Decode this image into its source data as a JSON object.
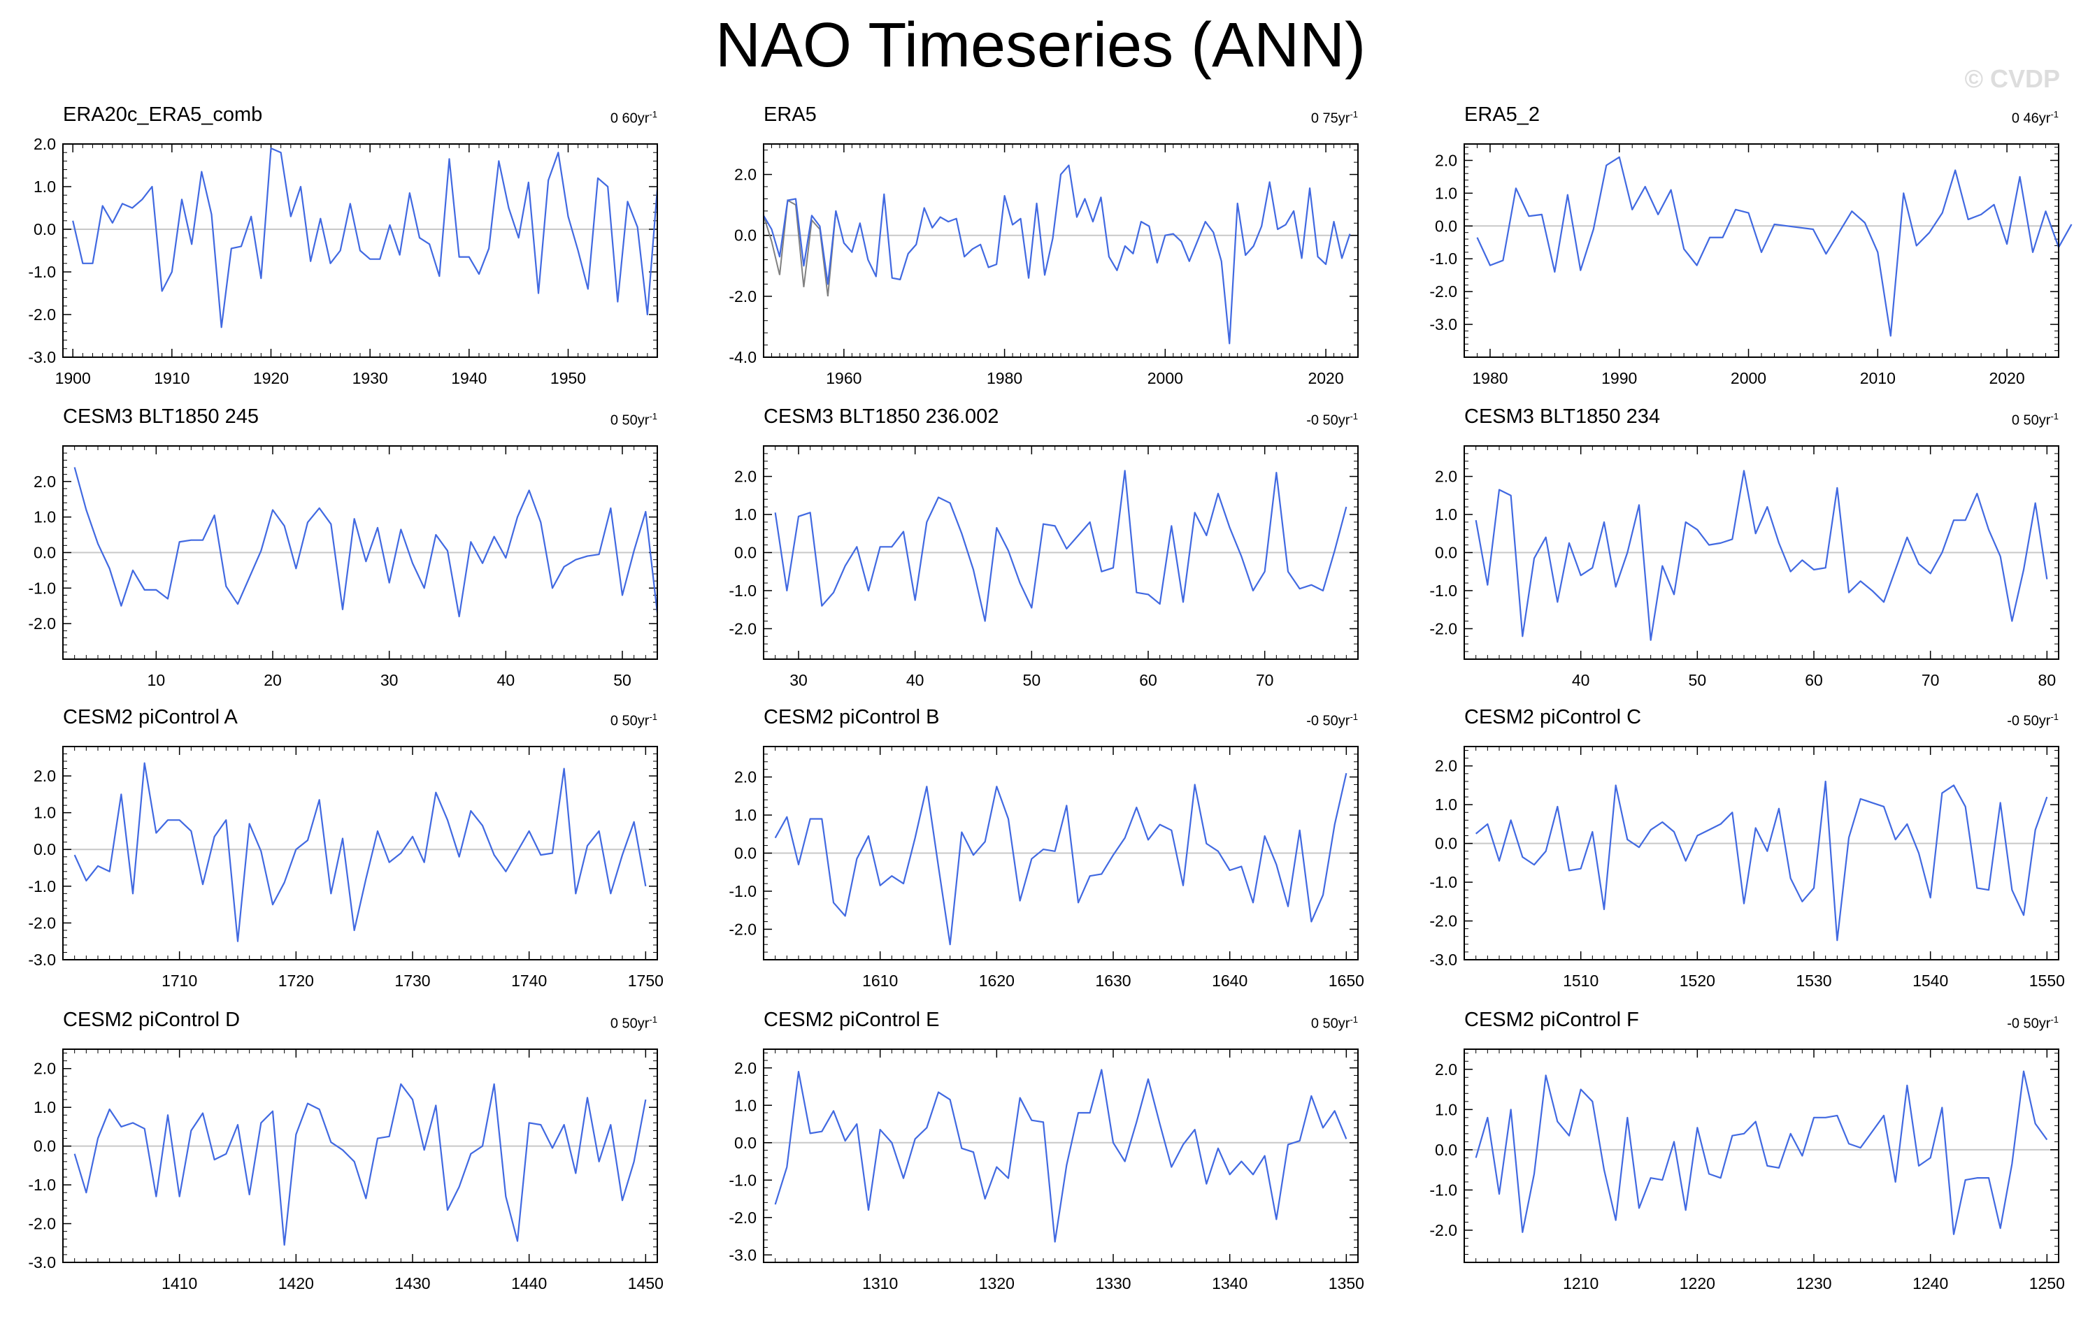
{
  "title": "NAO Timeseries (ANN)",
  "watermark": "© CVDP",
  "colors": {
    "series": "#4169e1",
    "overlay": "#808080",
    "zero": "#c8c8c8",
    "axis": "#000000"
  },
  "chart_data": [
    {
      "type": "line",
      "title": "ERA20c_ERA5_comb",
      "trend": "0 60yr",
      "trend_unit_exp": "-1",
      "xlim": [
        1899,
        1959
      ],
      "ylim": [
        -3,
        2
      ],
      "xticks": [
        1900,
        1910,
        1920,
        1930,
        1940,
        1950
      ],
      "yticks": [
        "-3.0",
        "-2.0",
        "-1.0",
        "0.0",
        "1.0",
        "2.0"
      ],
      "x_start": 1900,
      "values": [
        0.2,
        -0.8,
        -0.8,
        0.55,
        0.15,
        0.6,
        0.5,
        0.7,
        1.0,
        -1.45,
        -1.0,
        0.7,
        -0.35,
        1.35,
        0.35,
        -2.3,
        -0.45,
        -0.4,
        0.3,
        -1.15,
        1.9,
        1.8,
        0.3,
        1.0,
        -0.75,
        0.25,
        -0.8,
        -0.5,
        0.6,
        -0.5,
        -0.7,
        -0.7,
        0.1,
        -0.6,
        0.85,
        -0.2,
        -0.35,
        -1.1,
        1.65,
        -0.65,
        -0.65,
        -1.05,
        -0.45,
        1.6,
        0.5,
        -0.2,
        1.1,
        -1.5,
        1.15,
        1.8,
        0.3,
        -0.5,
        -1.4,
        1.2,
        1.0,
        -1.7,
        0.65,
        0.05,
        -2.0,
        0.95
      ]
    },
    {
      "type": "line",
      "title": "ERA5",
      "trend": "0 75yr",
      "trend_unit_exp": "-1",
      "xlim": [
        1950,
        2024
      ],
      "ylim": [
        -4,
        3
      ],
      "xticks": [
        1960,
        1980,
        2000,
        2020
      ],
      "yticks": [
        "-4.0",
        "-2.0",
        "0.0",
        "2.0"
      ],
      "x_start": 1950,
      "values": [
        0.65,
        0.2,
        -0.7,
        1.15,
        1.2,
        -1.0,
        0.65,
        0.3,
        -1.6,
        0.8,
        -0.25,
        -0.55,
        0.4,
        -0.8,
        -1.35,
        1.35,
        -1.4,
        -1.45,
        -0.6,
        -0.3,
        0.9,
        0.25,
        0.6,
        0.45,
        0.55,
        -0.7,
        -0.45,
        -0.3,
        -1.05,
        -0.95,
        1.3,
        0.35,
        0.55,
        -1.4,
        1.05,
        -1.3,
        -0.1,
        2.0,
        2.3,
        0.6,
        1.2,
        0.45,
        1.25,
        -0.7,
        -1.15,
        -0.35,
        -0.6,
        0.45,
        0.3,
        -0.9,
        0.0,
        0.05,
        -0.2,
        -0.85,
        -0.2,
        0.45,
        0.1,
        -0.85,
        -3.55,
        1.05,
        -0.65,
        -0.35,
        0.3,
        1.75,
        0.2,
        0.35,
        0.8,
        -0.75,
        1.55,
        -0.7,
        -0.95,
        0.45,
        -0.75,
        0.05
      ],
      "overlay_start": 1950,
      "overlay": [
        0.65,
        -0.2,
        -1.3,
        1.15,
        1.0,
        -1.7,
        0.5,
        0.2,
        -2.0,
        0.8
      ]
    },
    {
      "type": "line",
      "title": "ERA5_2",
      "trend": "0 46yr",
      "trend_unit_exp": "-1",
      "xlim": [
        1978,
        2024
      ],
      "ylim": [
        -4,
        2.5
      ],
      "xticks": [
        1980,
        1990,
        2000,
        2010,
        2020
      ],
      "yticks": [
        "-3.0",
        "-2.0",
        "-1.0",
        "0.0",
        "1.0",
        "2.0"
      ],
      "x_start": 1979,
      "values": [
        -0.35,
        -1.2,
        -1.05,
        1.15,
        0.3,
        0.35,
        -1.4,
        0.95,
        -1.35,
        -0.1,
        1.85,
        2.1,
        0.5,
        1.2,
        0.35,
        1.1,
        -0.7,
        -1.2,
        -0.35,
        -0.35,
        0.5,
        0.4,
        -0.8,
        0.05,
        0.0,
        -0.05,
        -0.1,
        -0.85,
        -0.2,
        0.45,
        0.1,
        -0.8,
        -3.35,
        1.0,
        -0.6,
        -0.2,
        0.4,
        1.7,
        0.2,
        0.35,
        0.65,
        -0.55,
        1.5,
        -0.8,
        0.45,
        -0.65,
        0.05
      ]
    },
    {
      "type": "line",
      "title": "CESM3 BLT1850 245",
      "trend": "0 50yr",
      "trend_unit_exp": "-1",
      "xlim": [
        2,
        53
      ],
      "ylim": [
        -3,
        3
      ],
      "xticks": [
        10,
        20,
        30,
        40,
        50
      ],
      "yticks": [
        "-2.0",
        "-1.0",
        "0.0",
        "1.0",
        "2.0"
      ],
      "x_start": 3,
      "values": [
        2.4,
        1.2,
        0.25,
        -0.45,
        -1.5,
        -0.5,
        -1.05,
        -1.05,
        -1.3,
        0.3,
        0.35,
        0.35,
        1.05,
        -0.95,
        -1.45,
        -0.7,
        0.05,
        1.2,
        0.75,
        -0.45,
        0.85,
        1.25,
        0.8,
        -1.6,
        0.95,
        -0.25,
        0.7,
        -0.85,
        0.65,
        -0.3,
        -1.0,
        0.5,
        0.05,
        -1.8,
        0.3,
        -0.3,
        0.45,
        -0.15,
        1.0,
        1.75,
        0.85,
        -1.0,
        -0.4,
        -0.2,
        -0.1,
        -0.05,
        1.25,
        -1.2,
        0.05,
        1.15,
        -1.7
      ]
    },
    {
      "type": "line",
      "title": "CESM3 BLT1850 236.002",
      "trend": "-0 50yr",
      "trend_unit_exp": "-1",
      "xlim": [
        27,
        78
      ],
      "ylim": [
        -2.8,
        2.8
      ],
      "xticks": [
        30,
        40,
        50,
        60,
        70
      ],
      "yticks": [
        "-2.0",
        "-1.0",
        "0.0",
        "1.0",
        "2.0"
      ],
      "x_start": 28,
      "values": [
        1.05,
        -1.0,
        0.95,
        1.05,
        -1.4,
        -1.05,
        -0.35,
        0.15,
        -1.0,
        0.15,
        0.15,
        0.55,
        -1.25,
        0.8,
        1.45,
        1.3,
        0.5,
        -0.45,
        -1.8,
        0.65,
        0.05,
        -0.8,
        -1.45,
        0.75,
        0.7,
        0.1,
        0.45,
        0.8,
        -0.5,
        -0.4,
        2.15,
        -1.05,
        -1.1,
        -1.35,
        0.7,
        -1.3,
        1.05,
        0.45,
        1.55,
        0.65,
        -0.1,
        -1.0,
        -0.5,
        2.1,
        -0.5,
        -0.95,
        -0.85,
        -1.0,
        0.05,
        1.2
      ]
    },
    {
      "type": "line",
      "title": "CESM3 BLT1850 234",
      "trend": "0 50yr",
      "trend_unit_exp": "-1",
      "xlim": [
        30,
        81
      ],
      "ylim": [
        -2.8,
        2.8
      ],
      "xticks": [
        40,
        50,
        60,
        70,
        80
      ],
      "yticks": [
        "-2.0",
        "-1.0",
        "0.0",
        "1.0",
        "2.0"
      ],
      "x_start": 31,
      "values": [
        0.85,
        -0.85,
        1.65,
        1.5,
        -2.2,
        -0.15,
        0.4,
        -1.3,
        0.25,
        -0.6,
        -0.4,
        0.8,
        -0.9,
        0.0,
        1.25,
        -2.3,
        -0.35,
        -1.1,
        0.8,
        0.6,
        0.2,
        0.25,
        0.35,
        2.15,
        0.5,
        1.2,
        0.25,
        -0.5,
        -0.2,
        -0.45,
        -0.4,
        1.7,
        -1.05,
        -0.75,
        -1.0,
        -1.3,
        -0.45,
        0.4,
        -0.3,
        -0.55,
        0.0,
        0.85,
        0.85,
        1.55,
        0.6,
        -0.1,
        -1.8,
        -0.45,
        1.3,
        -0.7
      ]
    },
    {
      "type": "line",
      "title": "CESM2 piControl A",
      "trend": "0 50yr",
      "trend_unit_exp": "-1",
      "xlim": [
        1700,
        1751
      ],
      "ylim": [
        -3,
        2.8
      ],
      "xticks": [
        1710,
        1720,
        1730,
        1740,
        1750
      ],
      "yticks": [
        "-3.0",
        "-2.0",
        "-1.0",
        "0.0",
        "1.0",
        "2.0"
      ],
      "x_start": 1701,
      "values": [
        -0.15,
        -0.85,
        -0.45,
        -0.6,
        1.5,
        -1.2,
        2.35,
        0.45,
        0.8,
        0.8,
        0.5,
        -0.95,
        0.35,
        0.8,
        -2.5,
        0.7,
        -0.05,
        -1.5,
        -0.9,
        0.0,
        0.25,
        1.35,
        -1.2,
        0.3,
        -2.2,
        -0.8,
        0.5,
        -0.35,
        -0.1,
        0.35,
        -0.35,
        1.55,
        0.8,
        -0.2,
        1.05,
        0.65,
        -0.15,
        -0.6,
        -0.05,
        0.5,
        -0.15,
        -0.1,
        2.2,
        -1.2,
        0.1,
        0.5,
        -1.2,
        -0.15,
        0.75,
        -1.0
      ]
    },
    {
      "type": "line",
      "title": "CESM2 piControl B",
      "trend": "-0 50yr",
      "trend_unit_exp": "-1",
      "xlim": [
        1600,
        1651
      ],
      "ylim": [
        -2.8,
        2.8
      ],
      "xticks": [
        1610,
        1620,
        1630,
        1640,
        1650
      ],
      "yticks": [
        "-2.0",
        "-1.0",
        "0.0",
        "1.0",
        "2.0"
      ],
      "x_start": 1601,
      "values": [
        0.4,
        0.95,
        -0.3,
        0.9,
        0.9,
        -1.3,
        -1.65,
        -0.15,
        0.45,
        -0.85,
        -0.6,
        -0.8,
        0.4,
        1.75,
        -0.35,
        -2.4,
        0.55,
        -0.05,
        0.3,
        1.75,
        0.9,
        -1.25,
        -0.15,
        0.1,
        0.05,
        1.25,
        -1.3,
        -0.6,
        -0.55,
        -0.05,
        0.4,
        1.2,
        0.35,
        0.75,
        0.6,
        -0.85,
        1.8,
        0.25,
        0.05,
        -0.45,
        -0.35,
        -1.3,
        0.45,
        -0.3,
        -1.4,
        0.6,
        -1.8,
        -1.1,
        0.75,
        2.1
      ]
    },
    {
      "type": "line",
      "title": "CESM2 piControl C",
      "trend": "-0 50yr",
      "trend_unit_exp": "-1",
      "xlim": [
        1500,
        1551
      ],
      "ylim": [
        -3,
        2.5
      ],
      "xticks": [
        1510,
        1520,
        1530,
        1540,
        1550
      ],
      "yticks": [
        "-3.0",
        "-2.0",
        "-1.0",
        "0.0",
        "1.0",
        "2.0"
      ],
      "x_start": 1501,
      "values": [
        0.25,
        0.5,
        -0.45,
        0.6,
        -0.35,
        -0.55,
        -0.2,
        0.95,
        -0.7,
        -0.65,
        0.3,
        -1.7,
        1.5,
        0.1,
        -0.1,
        0.35,
        0.55,
        0.3,
        -0.45,
        0.2,
        0.35,
        0.5,
        0.8,
        -1.55,
        0.4,
        -0.2,
        0.9,
        -0.9,
        -1.5,
        -1.15,
        1.6,
        -2.5,
        0.15,
        1.15,
        1.05,
        0.95,
        0.1,
        0.5,
        -0.25,
        -1.4,
        1.3,
        1.5,
        0.95,
        -1.15,
        -1.2,
        1.05,
        -1.2,
        -1.85,
        0.35,
        1.2
      ]
    },
    {
      "type": "line",
      "title": "CESM2 piControl D",
      "trend": "0 50yr",
      "trend_unit_exp": "-1",
      "xlim": [
        1400,
        1451
      ],
      "ylim": [
        -3,
        2.5
      ],
      "xticks": [
        1410,
        1420,
        1430,
        1440,
        1450
      ],
      "yticks": [
        "-3.0",
        "-2.0",
        "-1.0",
        "0.0",
        "1.0",
        "2.0"
      ],
      "x_start": 1401,
      "values": [
        -0.2,
        -1.2,
        0.2,
        0.95,
        0.5,
        0.6,
        0.45,
        -1.3,
        0.8,
        -1.3,
        0.4,
        0.85,
        -0.35,
        -0.2,
        0.55,
        -1.25,
        0.6,
        0.9,
        -2.55,
        0.3,
        1.1,
        0.95,
        0.1,
        -0.1,
        -0.4,
        -1.35,
        0.2,
        0.25,
        1.6,
        1.2,
        -0.1,
        1.05,
        -1.65,
        -1.05,
        -0.2,
        0.0,
        1.6,
        -1.3,
        -2.45,
        0.6,
        0.55,
        -0.05,
        0.55,
        -0.7,
        1.25,
        -0.4,
        0.55,
        -1.4,
        -0.4,
        1.2
      ]
    },
    {
      "type": "line",
      "title": "CESM2 piControl E",
      "trend": "0 50yr",
      "trend_unit_exp": "-1",
      "xlim": [
        1300,
        1351
      ],
      "ylim": [
        -3.2,
        2.5
      ],
      "xticks": [
        1310,
        1320,
        1330,
        1340,
        1350
      ],
      "yticks": [
        "-3.0",
        "-2.0",
        "-1.0",
        "0.0",
        "1.0",
        "2.0"
      ],
      "x_start": 1301,
      "values": [
        -1.65,
        -0.65,
        1.9,
        0.25,
        0.3,
        0.85,
        0.05,
        0.5,
        -1.8,
        0.35,
        0.0,
        -0.95,
        0.1,
        0.4,
        1.35,
        1.15,
        -0.15,
        -0.25,
        -1.5,
        -0.65,
        -0.95,
        1.2,
        0.6,
        0.55,
        -2.65,
        -0.6,
        0.8,
        0.8,
        1.95,
        0.0,
        -0.5,
        0.55,
        1.7,
        0.5,
        -0.65,
        -0.05,
        0.35,
        -1.1,
        -0.15,
        -0.85,
        -0.5,
        -0.85,
        -0.35,
        -2.05,
        -0.05,
        0.05,
        1.25,
        0.4,
        0.85,
        0.1
      ]
    },
    {
      "type": "line",
      "title": "CESM2 piControl F",
      "trend": "-0 50yr",
      "trend_unit_exp": "-1",
      "xlim": [
        1200,
        1251
      ],
      "ylim": [
        -2.8,
        2.5
      ],
      "xticks": [
        1210,
        1220,
        1230,
        1240,
        1250
      ],
      "yticks": [
        "-2.0",
        "-1.0",
        "0.0",
        "1.0",
        "2.0"
      ],
      "x_start": 1201,
      "values": [
        -0.2,
        0.8,
        -1.1,
        1.0,
        -2.05,
        -0.6,
        1.85,
        0.7,
        0.35,
        1.5,
        1.2,
        -0.5,
        -1.75,
        0.8,
        -1.45,
        -0.7,
        -0.75,
        0.2,
        -1.5,
        0.55,
        -0.6,
        -0.7,
        0.35,
        0.4,
        0.7,
        -0.4,
        -0.45,
        0.4,
        -0.15,
        0.8,
        0.8,
        0.85,
        0.15,
        0.05,
        0.45,
        0.85,
        -0.8,
        1.6,
        -0.4,
        -0.2,
        1.05,
        -2.1,
        -0.75,
        -0.7,
        -0.7,
        -1.95,
        -0.35,
        1.95,
        0.65,
        0.25
      ]
    }
  ]
}
